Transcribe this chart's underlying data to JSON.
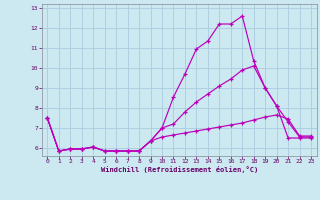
{
  "xlabel": "Windchill (Refroidissement éolien,°C)",
  "bg_color": "#cce8f0",
  "grid_color": "#aaccdd",
  "line_color": "#bb00bb",
  "xmin": -0.5,
  "xmax": 23.5,
  "ymin": 5.6,
  "ymax": 13.2,
  "yticks": [
    6,
    7,
    8,
    9,
    10,
    11,
    12,
    13
  ],
  "xticks": [
    0,
    1,
    2,
    3,
    4,
    5,
    6,
    7,
    8,
    9,
    10,
    11,
    12,
    13,
    14,
    15,
    16,
    17,
    18,
    19,
    20,
    21,
    22,
    23
  ],
  "line1_x": [
    0,
    1,
    2,
    3,
    4,
    5,
    6,
    7,
    8,
    9,
    10,
    11,
    12,
    13,
    14,
    15,
    16,
    17,
    18,
    19,
    20,
    21,
    22,
    23
  ],
  "line1_y": [
    7.5,
    5.85,
    5.95,
    5.95,
    6.05,
    5.85,
    5.85,
    5.85,
    5.85,
    6.35,
    7.0,
    8.55,
    9.7,
    10.95,
    11.35,
    12.2,
    12.2,
    12.6,
    10.35,
    9.0,
    8.1,
    7.3,
    6.55,
    6.55
  ],
  "line2_x": [
    0,
    1,
    2,
    3,
    4,
    5,
    6,
    7,
    8,
    9,
    10,
    11,
    12,
    13,
    14,
    15,
    16,
    17,
    18,
    19,
    20,
    21,
    22,
    23
  ],
  "line2_y": [
    7.5,
    5.85,
    5.95,
    5.95,
    6.05,
    5.85,
    5.85,
    5.85,
    5.85,
    6.35,
    7.0,
    7.2,
    7.8,
    8.3,
    8.7,
    9.1,
    9.45,
    9.9,
    10.1,
    9.0,
    8.1,
    6.5,
    6.5,
    6.5
  ],
  "line3_x": [
    0,
    1,
    2,
    3,
    4,
    5,
    6,
    7,
    8,
    9,
    10,
    11,
    12,
    13,
    14,
    15,
    16,
    17,
    18,
    19,
    20,
    21,
    22,
    23
  ],
  "line3_y": [
    7.5,
    5.85,
    5.95,
    5.95,
    6.05,
    5.85,
    5.85,
    5.85,
    5.85,
    6.35,
    6.55,
    6.65,
    6.75,
    6.85,
    6.95,
    7.05,
    7.15,
    7.25,
    7.4,
    7.55,
    7.65,
    7.45,
    6.6,
    6.6
  ]
}
